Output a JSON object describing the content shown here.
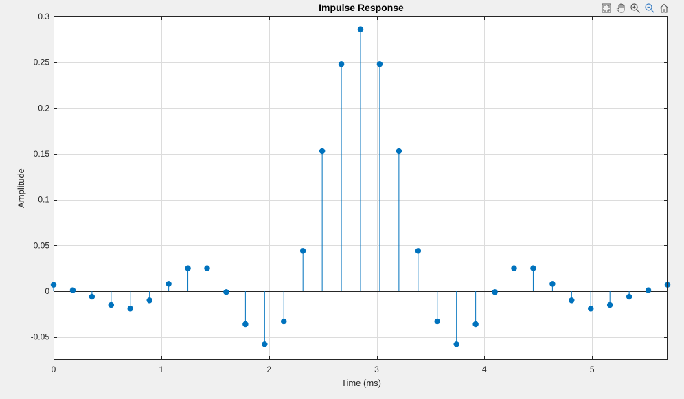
{
  "toolbar": {
    "icons": [
      "expand-icon",
      "pan-hand-icon",
      "zoom-in-icon",
      "zoom-out-icon",
      "home-icon"
    ]
  },
  "chart_data": {
    "type": "stem",
    "title": "Impulse Response",
    "xlabel": "Time (ms)",
    "ylabel": "Amplitude",
    "xlim": [
      0,
      5.7
    ],
    "ylim": [
      -0.075,
      0.3
    ],
    "xticks": [
      0,
      1,
      2,
      3,
      4,
      5
    ],
    "xtick_labels": [
      "0",
      "1",
      "2",
      "3",
      "4",
      "5"
    ],
    "yticks": [
      -0.05,
      0,
      0.05,
      0.1,
      0.15,
      0.2,
      0.25,
      0.3
    ],
    "ytick_labels": [
      "-0.05",
      "0",
      "0.05",
      "0.1",
      "0.15",
      "0.2",
      "0.25",
      "0.3"
    ],
    "grid": true,
    "color": "#0072bd",
    "x": [
      0,
      0.1781,
      0.3563,
      0.5344,
      0.7125,
      0.8906,
      1.0688,
      1.2469,
      1.425,
      1.6031,
      1.7813,
      1.9594,
      2.1375,
      2.3156,
      2.4938,
      2.6719,
      2.85,
      3.0281,
      3.2063,
      3.3844,
      3.5625,
      3.7406,
      3.9188,
      4.0969,
      4.275,
      4.4531,
      4.6313,
      4.8094,
      4.9875,
      5.1656,
      5.3438,
      5.5219,
      5.7
    ],
    "y": [
      0.007,
      0.001,
      -0.006,
      -0.015,
      -0.019,
      -0.01,
      0.008,
      0.025,
      0.025,
      -0.001,
      -0.036,
      -0.058,
      -0.033,
      0.044,
      0.153,
      0.248,
      0.286,
      0.248,
      0.153,
      0.044,
      -0.033,
      -0.058,
      -0.036,
      -0.001,
      0.025,
      0.025,
      0.008,
      -0.01,
      -0.019,
      -0.015,
      -0.006,
      0.001,
      0.007
    ]
  }
}
